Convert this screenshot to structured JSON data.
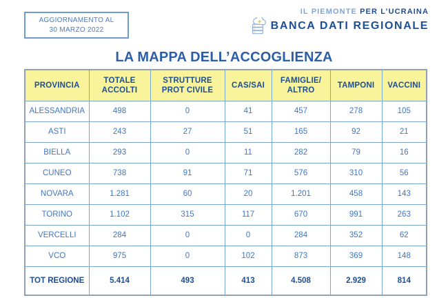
{
  "colors": {
    "header_yellow": "#f9f39b",
    "navy_text": "#1d4e94",
    "body_blue_text": "#4076c5",
    "title_blue": "#2c5ea8",
    "border_blue": "#79a4d3",
    "logo_light_blue": "#7ea7d8"
  },
  "update_box": {
    "line1": "AGGIORNAMENTO AL",
    "line2": "30 MARZO 2022"
  },
  "logo": {
    "line1_light": "IL PIEMONTE",
    "line1_bold": "PER L’UCRAINA",
    "line2": "BANCA DATI REGIONALE",
    "icon": "cloud-database-icon"
  },
  "title": "LA MAPPA DELL’ACCOGLIENZA",
  "table": {
    "headers": [
      "PROVINCIA",
      "TOTALE ACCOLTI",
      "STRUTTURE PROT CIVILE",
      "CAS/SAI",
      "FAMIGLIE/ ALTRO",
      "TAMPONI",
      "VACCINI"
    ],
    "rows": [
      {
        "province": "ALESSANDRIA",
        "values": [
          "498",
          "0",
          "41",
          "457",
          "278",
          "105"
        ],
        "is_total": false
      },
      {
        "province": "ASTI",
        "values": [
          "243",
          "27",
          "51",
          "165",
          "92",
          "21"
        ],
        "is_total": false
      },
      {
        "province": "BIELLA",
        "values": [
          "293",
          "0",
          "11",
          "282",
          "79",
          "16"
        ],
        "is_total": false
      },
      {
        "province": "CUNEO",
        "values": [
          "738",
          "91",
          "71",
          "576",
          "310",
          "56"
        ],
        "is_total": false
      },
      {
        "province": "NOVARA",
        "values": [
          "1.281",
          "60",
          "20",
          "1.201",
          "458",
          "143"
        ],
        "is_total": false
      },
      {
        "province": "TORINO",
        "values": [
          "1.102",
          "315",
          "117",
          "670",
          "991",
          "263"
        ],
        "is_total": false
      },
      {
        "province": "VERCELLI",
        "values": [
          "284",
          "0",
          "0",
          "284",
          "352",
          "62"
        ],
        "is_total": false
      },
      {
        "province": "VCO",
        "values": [
          "975",
          "0",
          "102",
          "873",
          "369",
          "148"
        ],
        "is_total": false
      },
      {
        "province": "TOT REGIONE",
        "values": [
          "5.414",
          "493",
          "413",
          "4.508",
          "2.929",
          "814"
        ],
        "is_total": true
      }
    ]
  },
  "chart_data": {
    "type": "table",
    "title": "LA MAPPA DELL’ACCOGLIENZA",
    "columns": [
      "PROVINCIA",
      "TOTALE ACCOLTI",
      "STRUTTURE PROT CIVILE",
      "CAS/SAI",
      "FAMIGLIE/ALTRO",
      "TAMPONI",
      "VACCINI"
    ],
    "rows": [
      [
        "ALESSANDRIA",
        498,
        0,
        41,
        457,
        278,
        105
      ],
      [
        "ASTI",
        243,
        27,
        51,
        165,
        92,
        21
      ],
      [
        "BIELLA",
        293,
        0,
        11,
        282,
        79,
        16
      ],
      [
        "CUNEO",
        738,
        91,
        71,
        576,
        310,
        56
      ],
      [
        "NOVARA",
        1281,
        60,
        20,
        1201,
        458,
        143
      ],
      [
        "TORINO",
        1102,
        315,
        117,
        670,
        991,
        263
      ],
      [
        "VERCELLI",
        284,
        0,
        0,
        284,
        352,
        62
      ],
      [
        "VCO",
        975,
        0,
        102,
        873,
        369,
        148
      ],
      [
        "TOT REGIONE",
        5414,
        493,
        413,
        4508,
        2929,
        814
      ]
    ]
  }
}
